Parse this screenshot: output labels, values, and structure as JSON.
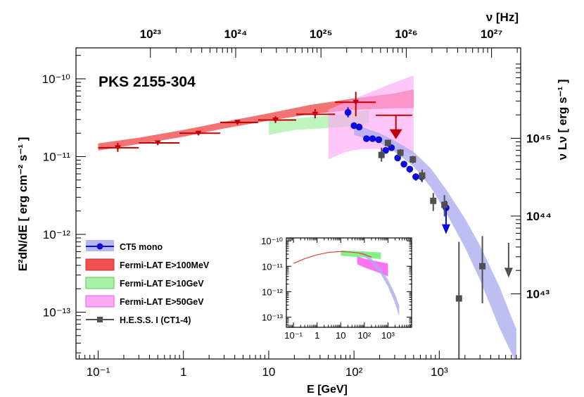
{
  "chart_data": {
    "type": "scatter",
    "title": "PKS 2155-304",
    "xlabel": "E [GeV]",
    "ylabel": "E²dN/dE [ erg cm⁻² s⁻¹ ]",
    "x2label": "ν [Hz]",
    "y2label": "ν Lν [ erg s⁻¹ ]",
    "xscale": "log",
    "yscale": "log",
    "xlim": [
      0.055,
      9000
    ],
    "ylim": [
      2.5e-14,
      2.5e-10
    ],
    "x_ticks": [
      {
        "v": 0.1,
        "label": "10⁻¹"
      },
      {
        "v": 1,
        "label": "1"
      },
      {
        "v": 10,
        "label": "10"
      },
      {
        "v": 100,
        "label": "10²"
      },
      {
        "v": 1000,
        "label": "10³"
      }
    ],
    "y_ticks": [
      {
        "v": 1e-13,
        "label": "10⁻¹³"
      },
      {
        "v": 1e-12,
        "label": "10⁻¹²"
      },
      {
        "v": 1e-11,
        "label": "10⁻¹¹"
      },
      {
        "v": 1e-10,
        "label": "10⁻¹⁰"
      }
    ],
    "top_ticks": [
      {
        "v": 0.41,
        "label": "10²³"
      },
      {
        "v": 4.1,
        "label": "10²⁴"
      },
      {
        "v": 41,
        "label": "10²⁵"
      },
      {
        "v": 410,
        "label": "10²⁶"
      },
      {
        "v": 4100,
        "label": "10²⁷"
      }
    ],
    "right_ticks": [
      {
        "v": 1.72e-11,
        "label": "10⁴⁵"
      },
      {
        "v": 1.72e-12,
        "label": "10⁴⁴"
      },
      {
        "v": 1.72e-13,
        "label": "10⁴³"
      }
    ],
    "legend": {
      "position": "bottom-left",
      "entries": [
        {
          "label": "CT5 mono",
          "color": "#1010cc",
          "kind": "band-marker"
        },
        {
          "label": "Fermi-LAT E>100MeV",
          "color": "#f05050",
          "kind": "box"
        },
        {
          "label": "Fermi-LAT E>10GeV",
          "color": "#a8f0a8",
          "kind": "box"
        },
        {
          "label": "Fermi-LAT E>50GeV",
          "color": "#ffa8f8",
          "kind": "box"
        },
        {
          "label": "H.E.S.S. I (CT1-4)",
          "color": "#505050",
          "kind": "square-marker"
        }
      ]
    },
    "bands": [
      {
        "name": "Fermi-LAT E>100MeV",
        "fill": "#f05050",
        "opacity": 0.8,
        "x": [
          0.1,
          0.3,
          1,
          3,
          10,
          30,
          100,
          300,
          500
        ],
        "lo": [
          1.2e-11,
          1.45e-11,
          1.8e-11,
          2.3e-11,
          2.9e-11,
          3.5e-11,
          4e-11,
          4.2e-11,
          4.2e-11
        ],
        "hi": [
          1.48e-11,
          1.75e-11,
          2.2e-11,
          2.8e-11,
          3.6e-11,
          4.6e-11,
          5.6e-11,
          6.5e-11,
          7.3e-11
        ]
      },
      {
        "name": "Fermi-LAT E>10GeV",
        "fill": "#a8f0a8",
        "opacity": 0.75,
        "x": [
          10,
          20,
          40,
          70,
          100,
          150
        ],
        "lo": [
          1.9e-11,
          2.2e-11,
          2.3e-11,
          2.4e-11,
          2.5e-11,
          2.7e-11
        ],
        "hi": [
          2.9e-11,
          3.1e-11,
          3.3e-11,
          3.5e-11,
          3.7e-11,
          4e-11
        ]
      },
      {
        "name": "Fermi-LAT E>50GeV",
        "fill": "#ffa8f8",
        "opacity": 0.65,
        "x": [
          50,
          80,
          120,
          200,
          300,
          500
        ],
        "lo": [
          9.2e-12,
          1.15e-11,
          1.25e-11,
          1.25e-11,
          1.2e-11,
          1.1e-11
        ],
        "hi": [
          4e-11,
          5e-11,
          6e-11,
          7.5e-11,
          9e-11,
          1.1e-10
        ]
      },
      {
        "name": "CT5 mono",
        "fill": "#a8a8ee",
        "opacity": 0.75,
        "x": [
          100,
          200,
          300,
          500,
          800,
          1200,
          2000,
          3000,
          5000,
          8000
        ],
        "lo": [
          1.9e-11,
          1.5e-11,
          1.15e-11,
          7.5e-12,
          4e-12,
          1.9e-12,
          6.8e-13,
          2.6e-13,
          6.5e-14,
          2.2e-14
        ],
        "hi": [
          2.6e-11,
          2e-11,
          1.6e-11,
          1.15e-11,
          7e-12,
          3.8e-12,
          1.6e-12,
          7.2e-13,
          2.2e-13,
          6e-14
        ]
      }
    ],
    "series": [
      {
        "name": "Fermi-LAT E>100MeV points",
        "marker": "triangle-down",
        "color": "#c00000",
        "points": [
          {
            "x": 0.17,
            "y": 1.3e-11,
            "xlo": 0.1,
            "xhi": 0.3,
            "ylo": 1.15e-11,
            "yhi": 1.5e-11
          },
          {
            "x": 0.5,
            "y": 1.5e-11,
            "xlo": 0.3,
            "xhi": 0.9,
            "ylo": 1.45e-11,
            "yhi": 1.55e-11
          },
          {
            "x": 1.5,
            "y": 2e-11,
            "xlo": 0.9,
            "xhi": 2.7,
            "ylo": 1.95e-11,
            "yhi": 2.05e-11
          },
          {
            "x": 4.3,
            "y": 2.75e-11,
            "xlo": 2.7,
            "xhi": 7.5,
            "ylo": 2.65e-11,
            "yhi": 2.85e-11
          },
          {
            "x": 12,
            "y": 2.95e-11,
            "xlo": 7.5,
            "xhi": 21,
            "ylo": 2.7e-11,
            "yhi": 3.3e-11
          },
          {
            "x": 35,
            "y": 3.5e-11,
            "xlo": 21,
            "xhi": 60,
            "ylo": 3.1e-11,
            "yhi": 4.1e-11
          },
          {
            "x": 105,
            "y": 5e-11,
            "xlo": 60,
            "xhi": 180,
            "ylo": 3.3e-11,
            "yhi": 6.8e-11
          }
        ]
      },
      {
        "name": "Fermi-LAT upper limit",
        "marker": "arrow-down",
        "color": "#c00000",
        "points": [
          {
            "x": 310,
            "y": 3.4e-11,
            "xlo": 180,
            "xhi": 480,
            "to": 1.75e-11
          }
        ]
      },
      {
        "name": "CT5 mono",
        "marker": "circle",
        "color": "#0a0adc",
        "points": [
          {
            "x": 85,
            "y": 3.7e-11,
            "ylo": 3.2e-11,
            "yhi": 4.3e-11
          },
          {
            "x": 100,
            "y": 2.5e-11,
            "ylo": 2.3e-11,
            "yhi": 2.7e-11
          },
          {
            "x": 115,
            "y": 2.4e-11,
            "ylo": 2.25e-11,
            "yhi": 2.55e-11
          },
          {
            "x": 140,
            "y": 1.7e-11,
            "ylo": 1.6e-11,
            "yhi": 1.8e-11
          },
          {
            "x": 165,
            "y": 1.7e-11,
            "ylo": 1.6e-11,
            "yhi": 1.8e-11
          },
          {
            "x": 195,
            "y": 1.65e-11,
            "ylo": 1.55e-11,
            "yhi": 1.75e-11
          },
          {
            "x": 235,
            "y": 1.2e-11,
            "ylo": 1.1e-11,
            "yhi": 1.3e-11
          },
          {
            "x": 275,
            "y": 1.3e-11,
            "ylo": 1.2e-11,
            "yhi": 1.4e-11
          },
          {
            "x": 325,
            "y": 9.6e-12,
            "ylo": 8.8e-12,
            "yhi": 1.05e-11
          },
          {
            "x": 385,
            "y": 8e-12,
            "ylo": 7.3e-12,
            "yhi": 8.8e-12
          },
          {
            "x": 450,
            "y": 6.9e-12,
            "ylo": 6.2e-12,
            "yhi": 7.6e-12
          },
          {
            "x": 530,
            "y": 5.5e-12,
            "ylo": 4.9e-12,
            "yhi": 6.1e-12
          },
          {
            "x": 620,
            "y": 5.5e-12,
            "ylo": 4.8e-12,
            "yhi": 6.2e-12
          },
          {
            "x": 1200,
            "y": 2.2e-12,
            "ylo": 1.5e-12,
            "yhi": 2.7e-12
          }
        ]
      },
      {
        "name": "CT5 mono upper limit",
        "marker": "arrow-down",
        "color": "#0a0adc",
        "points": [
          {
            "x": 1200,
            "y": 2.2e-12,
            "to": 1.05e-12
          }
        ]
      },
      {
        "name": "H.E.S.S. I (CT1-4)",
        "marker": "square",
        "color": "#505050",
        "points": [
          {
            "x": 210,
            "y": 1.05e-11,
            "ylo": 8.6e-12,
            "yhi": 1.3e-11
          },
          {
            "x": 250,
            "y": 1.5e-11,
            "ylo": 1.35e-11,
            "yhi": 1.65e-11
          },
          {
            "x": 350,
            "y": 1.12e-11,
            "ylo": 1e-11,
            "yhi": 1.25e-11
          },
          {
            "x": 490,
            "y": 9.2e-12,
            "ylo": 8.2e-12,
            "yhi": 1.02e-11
          },
          {
            "x": 630,
            "y": 5.7e-12,
            "ylo": 4.7e-12,
            "yhi": 6.8e-12
          },
          {
            "x": 850,
            "y": 2.7e-12,
            "ylo": 2e-12,
            "yhi": 3.4e-12
          },
          {
            "x": 1150,
            "y": 2.4e-12,
            "ylo": 1.7e-12,
            "yhi": 3.2e-12
          },
          {
            "x": 1700,
            "y": 1.5e-13,
            "ylo": 2.5e-14,
            "yhi": 8e-13
          },
          {
            "x": 3200,
            "y": 3.9e-13,
            "ylo": 1.3e-13,
            "yhi": 9.5e-13
          }
        ]
      },
      {
        "name": "H.E.S.S. I upper limit",
        "marker": "arrow-down",
        "color": "#505050",
        "points": [
          {
            "x": 6500,
            "y": 7.8e-13,
            "to": 2.9e-13
          }
        ]
      }
    ],
    "inset": {
      "xlim": [
        0.05,
        10000
      ],
      "ylim": [
        4e-14,
        1.3e-10
      ],
      "x_ticks": [
        {
          "v": 0.1,
          "label": "10⁻¹"
        },
        {
          "v": 1,
          "label": "1"
        },
        {
          "v": 10,
          "label": "10"
        },
        {
          "v": 100,
          "label": "10²"
        },
        {
          "v": 1000,
          "label": "10³"
        }
      ],
      "y_ticks": [
        {
          "v": 1e-13,
          "label": "10⁻¹³"
        },
        {
          "v": 1e-12,
          "label": "10⁻¹²"
        },
        {
          "v": 1e-11,
          "label": "10⁻¹¹"
        },
        {
          "v": 1e-10,
          "label": "10⁻¹⁰"
        }
      ],
      "curve": {
        "color": "#e04040",
        "x": [
          0.1,
          0.3,
          1,
          3,
          10,
          30,
          60,
          100,
          200
        ],
        "y": [
          1.3e-11,
          2e-11,
          2.8e-11,
          3.5e-11,
          3.8e-11,
          3.6e-11,
          3.3e-11,
          2.9e-11,
          2.3e-11
        ]
      },
      "bands": [
        {
          "fill": "#66ee66",
          "opacity": 0.8,
          "x": [
            10,
            30,
            100,
            300,
            500
          ],
          "lo": [
            2.6e-11,
            2.4e-11,
            2.2e-11,
            2e-11,
            1.9e-11
          ],
          "hi": [
            4.2e-11,
            4e-11,
            3.8e-11,
            3.6e-11,
            3.5e-11
          ]
        },
        {
          "fill": "#ff44ee",
          "opacity": 0.75,
          "x": [
            50,
            100,
            300,
            600,
            1000
          ],
          "lo": [
            1.2e-11,
            9e-12,
            6.2e-12,
            4.8e-12,
            4e-12
          ],
          "hi": [
            2.4e-11,
            2e-11,
            1.6e-11,
            1.4e-11,
            1.3e-11
          ]
        },
        {
          "fill": "#aaaaee",
          "opacity": 0.8,
          "x": [
            80,
            200,
            500,
            1000,
            2000,
            3000
          ],
          "lo": [
            3e-11,
            1.4e-11,
            5e-12,
            1.6e-12,
            3.5e-13,
            1.1e-13
          ],
          "hi": [
            4e-11,
            2e-11,
            8e-12,
            3e-12,
            8e-13,
            2.8e-13
          ]
        }
      ]
    }
  }
}
